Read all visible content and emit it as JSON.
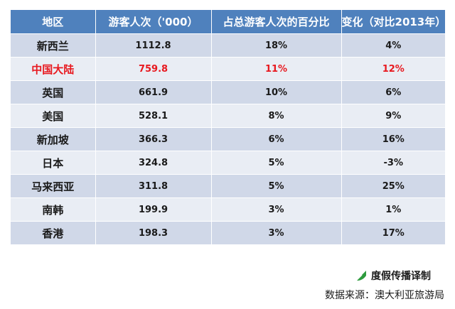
{
  "chart_data": {
    "type": "table",
    "columns": [
      "地区",
      "游客人次（'000）",
      "占总游客人次的百分比",
      "变化（对比2013年）"
    ],
    "rows": [
      {
        "region": "新西兰",
        "visitors": "1112.8",
        "share": "18%",
        "change": "4%",
        "highlight": false
      },
      {
        "region": "中国大陆",
        "visitors": "759.8",
        "share": "11%",
        "change": "12%",
        "highlight": true
      },
      {
        "region": "英国",
        "visitors": "661.9",
        "share": "10%",
        "change": "6%",
        "highlight": false
      },
      {
        "region": "美国",
        "visitors": "528.1",
        "share": "8%",
        "change": "9%",
        "highlight": false
      },
      {
        "region": "新加坡",
        "visitors": "366.3",
        "share": "6%",
        "change": "16%",
        "highlight": false
      },
      {
        "region": "日本",
        "visitors": "324.8",
        "share": "5%",
        "change": "-3%",
        "highlight": false
      },
      {
        "region": "马来西亚",
        "visitors": "311.8",
        "share": "5%",
        "change": "25%",
        "highlight": false
      },
      {
        "region": "南韩",
        "visitors": "199.9",
        "share": "3%",
        "change": "1%",
        "highlight": false
      },
      {
        "region": "香港",
        "visitors": "198.3",
        "share": "3%",
        "change": "17%",
        "highlight": false
      }
    ]
  },
  "footer": {
    "brand": "度假传播译制",
    "source": "数据来源：澳大利亚旅游局"
  },
  "colors": {
    "header_bg": "#4f81bd",
    "row_odd": "#d0d8e8",
    "row_even": "#e9edf4",
    "highlight_text": "#e8191f",
    "logo_green": "#2e9b3e"
  },
  "icons": {
    "brand_logo": "leaf-logo-icon"
  }
}
